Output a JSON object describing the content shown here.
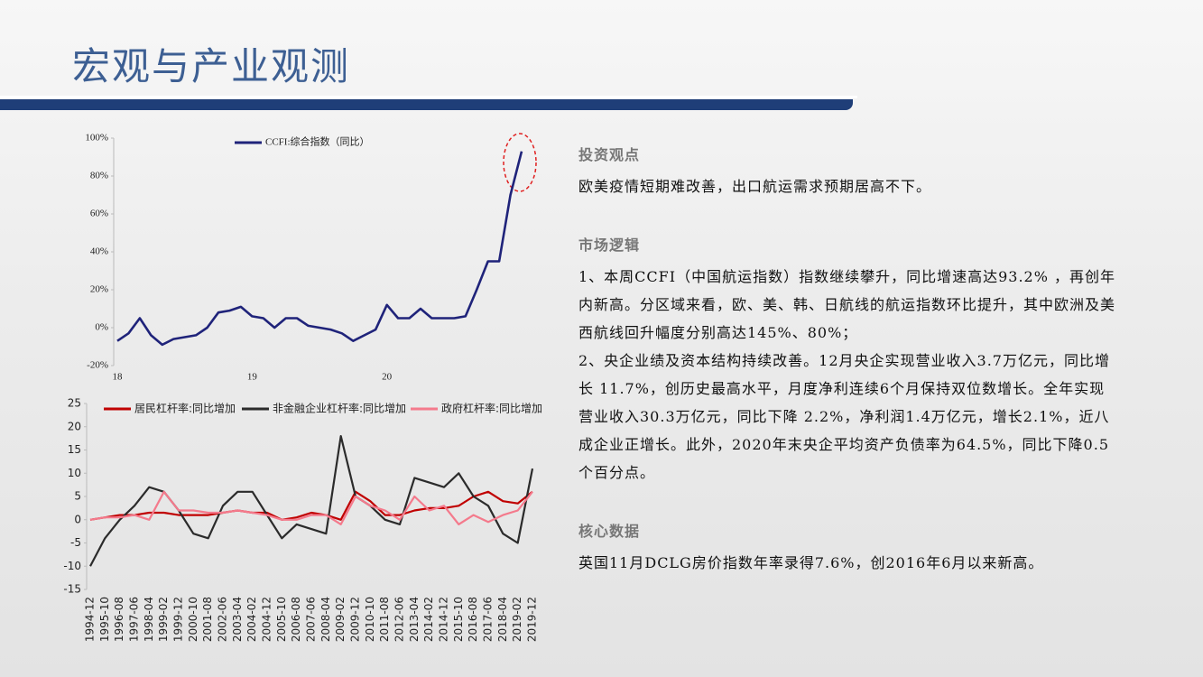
{
  "header": {
    "title": "宏观与产业观测"
  },
  "chart_data": [
    {
      "type": "line",
      "legend": "top",
      "categories": [
        "18",
        null,
        null,
        null,
        null,
        null,
        null,
        null,
        null,
        null,
        null,
        null,
        "19",
        null,
        null,
        null,
        null,
        null,
        null,
        null,
        null,
        null,
        null,
        null,
        "20",
        null,
        null,
        null,
        null,
        null,
        null,
        null,
        null,
        null,
        null,
        null,
        null
      ],
      "series": [
        {
          "name": "CCFI:综合指数（同比）",
          "color": "#1f237a",
          "values": [
            -7,
            -3,
            5,
            -4,
            -9,
            -6,
            -5,
            -4,
            0,
            8,
            9,
            11,
            6,
            5,
            0,
            5,
            5,
            1,
            0,
            -1,
            -3,
            -7,
            -4,
            -1,
            12,
            5,
            5,
            10,
            5,
            5,
            5,
            6,
            20,
            35,
            35,
            70,
            93
          ]
        }
      ],
      "ylim": [
        -20,
        100
      ],
      "yticks": [
        {
          "value": -20,
          "label": "-20%"
        },
        {
          "value": 0,
          "label": "0%"
        },
        {
          "value": 20,
          "label": "20%"
        },
        {
          "value": 40,
          "label": "40%"
        },
        {
          "value": 60,
          "label": "60%"
        },
        {
          "value": 80,
          "label": "80%"
        },
        {
          "value": 100,
          "label": "100%"
        }
      ],
      "grid": false
    },
    {
      "type": "line",
      "legend": "top",
      "categories": [
        "1994-12",
        "1995-10",
        "1996-08",
        "1997-06",
        "1998-04",
        "1999-02",
        "1999-12",
        "2000-10",
        "2001-08",
        "2002-06",
        "2003-04",
        "2004-02",
        "2004-12",
        "2005-10",
        "2006-08",
        "2007-06",
        "2008-04",
        "2009-02",
        "2009-12",
        "2010-10",
        "2011-08",
        "2012-06",
        "2013-04",
        "2014-02",
        "2014-12",
        "2015-10",
        "2016-08",
        "2017-06",
        "2018-04",
        "2019-02",
        "2019-12"
      ],
      "series": [
        {
          "name": "居民杠杆率:同比增加",
          "color": "#c00000",
          "values": [
            0,
            0.5,
            1,
            1,
            1.5,
            1.5,
            1,
            1,
            1,
            1.5,
            2,
            1.5,
            1.5,
            0,
            0.5,
            1.5,
            1,
            0,
            6,
            4,
            1,
            1,
            2,
            2.5,
            2.5,
            3,
            5,
            6,
            4,
            3.5,
            6
          ]
        },
        {
          "name": "非金融企业杠杆率:同比增加",
          "color": "#2b2b2b",
          "values": [
            -10,
            -4,
            0,
            3,
            7,
            6,
            2,
            -3,
            -4,
            3,
            6,
            6,
            1,
            -4,
            -1,
            -2,
            -3,
            18,
            5,
            3,
            0,
            -1,
            9,
            8,
            7,
            10,
            5,
            3,
            -3,
            -5,
            11
          ]
        },
        {
          "name": "政府杠杆率:同比增加",
          "color": "#f47a8c",
          "values": [
            0,
            0.5,
            0.5,
            1,
            0,
            6,
            2,
            2,
            1.5,
            1.5,
            2,
            1.5,
            1,
            0,
            0,
            1,
            1,
            -1,
            5,
            3,
            2,
            0,
            5,
            2,
            3,
            -1,
            1,
            -0.5,
            1,
            2,
            6
          ]
        }
      ],
      "ylim": [
        -15,
        25
      ],
      "yticks": [
        -15,
        -10,
        -5,
        0,
        5,
        10,
        15,
        20,
        25
      ],
      "grid": false
    }
  ],
  "sections": [
    {
      "heading": "投资观点",
      "paragraphs": [
        "欧美疫情短期难改善，出口航运需求预期居高不下。"
      ]
    },
    {
      "heading": "市场逻辑",
      "paragraphs": [
        "1、本周CCFI（中国航运指数）指数继续攀升，同比增速高达93.2% ，再创年内新高。分区域来看，欧、美、韩、日航线的航运指数环比提升，其中欧洲及美西航线回升幅度分别高达145%、80%；",
        "2、央企业绩及资本结构持续改善。12月央企实现营业收入3.7万亿元，同比增长 11.7%，创历史最高水平，月度净利连续6个月保持双位数增长。全年实现营业收入30.3万亿元，同比下降 2.2%，净利润1.4万亿元，增长2.1%，近八成企业正增长。此外，2020年末央企平均资产负债率为64.5%，同比下降0.5个百分点。"
      ]
    },
    {
      "heading": "核心数据",
      "paragraphs": [
        "英国11月DCLG房价指数年率录得7.6%，创2016年6月以来新高。"
      ]
    }
  ]
}
